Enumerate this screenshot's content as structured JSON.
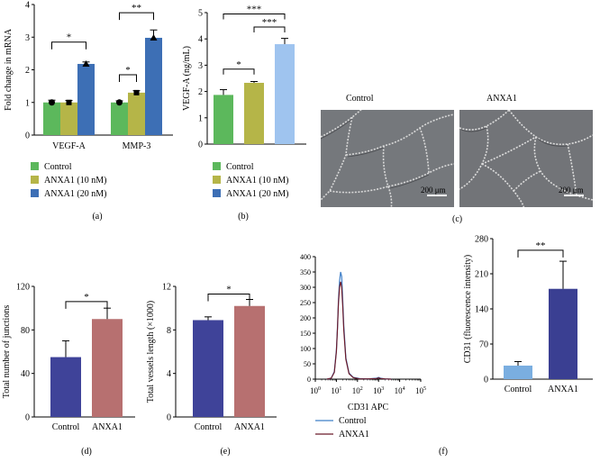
{
  "panels": {
    "a": "(a)",
    "b": "(b)",
    "c": "(c)",
    "d": "(d)",
    "e": "(e)",
    "f": "(f)"
  },
  "colors": {
    "control": "#5cb85c",
    "anxa1_10": "#b5b548",
    "anxa1_20": "#3d6fb5",
    "vegf_20": "#9fc4ef",
    "vessel_control": "#3f4399",
    "vessel_anxa1": "#b77070",
    "cd31_control": "#7aaee0",
    "cd31_anxa1": "#3a3f92",
    "flow_control": "#3f7fc8",
    "flow_anxa1": "#6b1a2a"
  },
  "micro": {
    "control_label": "Control",
    "anxa1_label": "ANXA1",
    "scale_label": "200 μm"
  },
  "chart_data": [
    {
      "id": "a",
      "type": "bar",
      "categories": [
        "VEGF-A",
        "MMP-3"
      ],
      "series": [
        {
          "name": "Control",
          "values": [
            1.0,
            1.0
          ],
          "errors": [
            0.07,
            0.05
          ],
          "color_key": "control"
        },
        {
          "name": "ANXA1 (10 nM)",
          "values": [
            1.0,
            1.3
          ],
          "errors": [
            0.06,
            0.06
          ],
          "color_key": "anxa1_10"
        },
        {
          "name": "ANXA1 (20 nM)",
          "values": [
            2.18,
            2.98
          ],
          "errors": [
            0.06,
            0.24
          ],
          "color_key": "anxa1_20"
        }
      ],
      "ylabel": "Fold change in mRNA",
      "ylim": [
        0,
        4
      ],
      "yticks": [
        0,
        1,
        2,
        3,
        4
      ],
      "significance": [
        {
          "group": 0,
          "from": 0,
          "to": 2,
          "y": 2.85,
          "label": "*"
        },
        {
          "group": 1,
          "from": 0,
          "to": 1,
          "y": 1.85,
          "label": "*"
        },
        {
          "group": 1,
          "from": 0,
          "to": 2,
          "y": 3.75,
          "label": "**"
        }
      ]
    },
    {
      "id": "b",
      "type": "bar",
      "categories": [
        "Control",
        "ANXA1 (10 nM)",
        "ANXA1 (20 nM)"
      ],
      "values": [
        1.87,
        2.33,
        3.8
      ],
      "errors": [
        0.2,
        0.05,
        0.22
      ],
      "color_keys": [
        "control",
        "anxa1_10",
        "vegf_20"
      ],
      "ylabel": "VEGF-A (ng/mL)",
      "ylim": [
        0,
        5
      ],
      "yticks": [
        0,
        1,
        2,
        3,
        4,
        5
      ],
      "significance": [
        {
          "from": 0,
          "to": 1,
          "y": 2.85,
          "label": "*"
        },
        {
          "from": 1,
          "to": 2,
          "y": 4.45,
          "label": "***"
        },
        {
          "from": 0,
          "to": 2,
          "y": 4.95,
          "label": "***"
        }
      ]
    },
    {
      "id": "legend-ab",
      "type": "legend",
      "entries": [
        "Control",
        "ANXA1 (10 nM)",
        "ANXA1 (20 nM)"
      ]
    },
    {
      "id": "d",
      "type": "bar",
      "categories": [
        "Control",
        "ANXA1"
      ],
      "values": [
        55,
        90
      ],
      "errors": [
        15,
        10
      ],
      "color_keys": [
        "vessel_control",
        "vessel_anxa1"
      ],
      "ylabel": "Total number of junctions",
      "ylim": [
        0,
        120
      ],
      "yticks": [
        0,
        40,
        80,
        120
      ],
      "significance": [
        {
          "from": 0,
          "to": 1,
          "y": 106,
          "label": "*"
        }
      ]
    },
    {
      "id": "e",
      "type": "bar",
      "categories": [
        "Control",
        "ANXA1"
      ],
      "values": [
        8.9,
        10.2
      ],
      "errors": [
        0.3,
        0.6
      ],
      "color_keys": [
        "vessel_control",
        "vessel_anxa1"
      ],
      "ylabel": "Total vessels length (×1000)",
      "ylim": [
        0,
        12
      ],
      "yticks": [
        0,
        4,
        8,
        12
      ],
      "significance": [
        {
          "from": 0,
          "to": 1,
          "y": 11.3,
          "label": "*"
        }
      ]
    },
    {
      "id": "f1",
      "type": "line",
      "xlabel": "CD31 APC",
      "xscale": "log",
      "xticks": [
        {
          "value": 0,
          "base": "10",
          "exp": "0"
        },
        {
          "value": 1,
          "base": "10",
          "exp": "1"
        },
        {
          "value": 2,
          "base": "10",
          "exp": "2"
        },
        {
          "value": 3,
          "base": "10",
          "exp": "3"
        },
        {
          "value": 4,
          "base": "10",
          "exp": "4"
        },
        {
          "value": 5,
          "base": "10",
          "exp": "5"
        }
      ],
      "xlim": [
        0,
        5
      ],
      "ylim": [
        0,
        400
      ],
      "yticks": [
        0,
        50,
        100,
        150,
        200,
        250,
        300,
        350,
        400
      ],
      "series": [
        {
          "name": "Control",
          "color_key": "flow_control",
          "x": [
            0.55,
            0.75,
            0.9,
            1.0,
            1.05,
            1.1,
            1.15,
            1.2,
            1.25,
            1.3,
            1.35,
            1.45,
            1.6,
            1.8,
            2.1,
            2.5,
            2.9,
            3.0,
            3.1,
            3.3,
            3.6
          ],
          "y": [
            0,
            3,
            25,
            95,
            170,
            260,
            320,
            350,
            335,
            260,
            175,
            70,
            20,
            6,
            2,
            1,
            3,
            6,
            3,
            1,
            0
          ]
        },
        {
          "name": "ANXA1",
          "color_key": "flow_anxa1",
          "x": [
            0.55,
            0.75,
            0.9,
            1.0,
            1.05,
            1.1,
            1.15,
            1.2,
            1.25,
            1.3,
            1.35,
            1.45,
            1.6,
            1.8,
            2.1,
            2.5,
            2.9,
            3.0,
            3.1,
            3.3,
            3.6
          ],
          "y": [
            0,
            3,
            22,
            90,
            165,
            250,
            300,
            318,
            300,
            240,
            160,
            65,
            18,
            5,
            1,
            1,
            2,
            4,
            2,
            1,
            0
          ]
        }
      ]
    },
    {
      "id": "f2",
      "type": "bar",
      "categories": [
        "Control",
        "ANXA1"
      ],
      "values": [
        27,
        180
      ],
      "errors": [
        8,
        55
      ],
      "color_keys": [
        "cd31_control",
        "cd31_anxa1"
      ],
      "ylabel": "CD31 (fluorescence intensity)",
      "ylim": [
        0,
        280
      ],
      "yticks": [
        0,
        70,
        140,
        210,
        280
      ],
      "significance": [
        {
          "from": 0,
          "to": 1,
          "y": 257,
          "label": "**"
        }
      ]
    }
  ]
}
